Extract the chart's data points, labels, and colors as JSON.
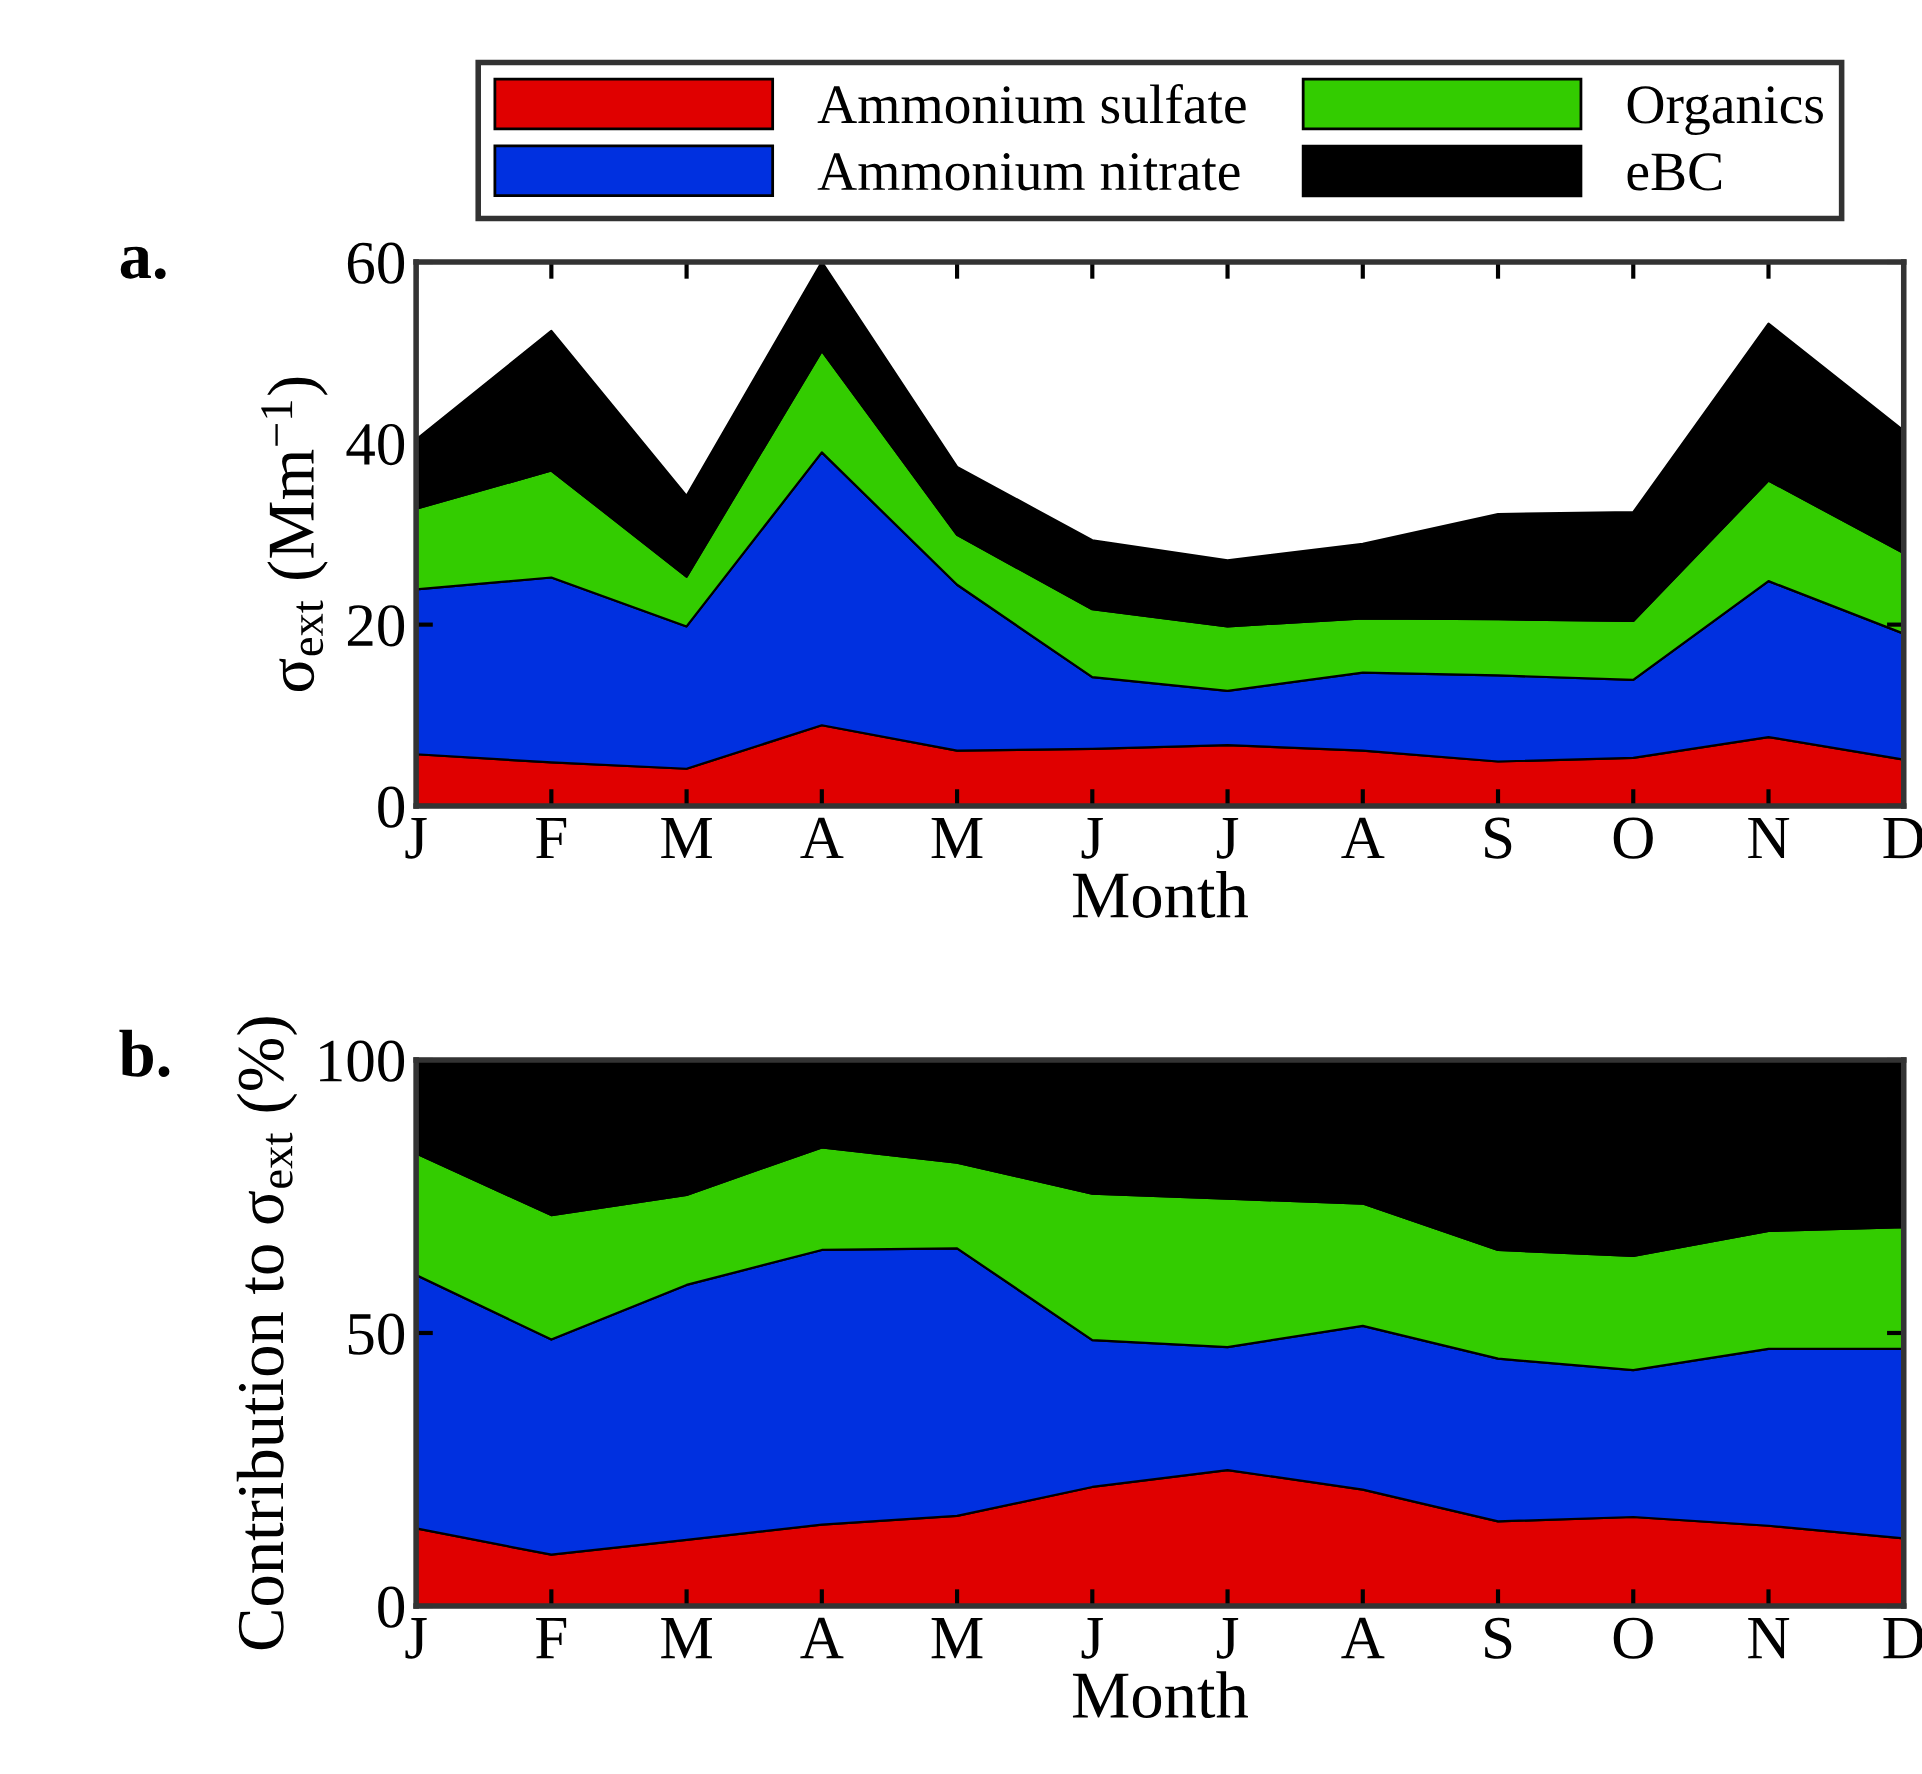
{
  "chart_data": [
    {
      "type": "area",
      "stacked": true,
      "title": "a.",
      "xlabel": "Month",
      "ylabel": "σ$_{ext}$ (Mm$^{−1}$)",
      "categories": [
        "J",
        "F",
        "M",
        "A",
        "M",
        "J",
        "J",
        "A",
        "S",
        "O",
        "N",
        "D"
      ],
      "ylim": [
        0,
        60
      ],
      "yticks": [
        0,
        20,
        40,
        60
      ],
      "grid": false,
      "legend": "top",
      "series": [
        {
          "name": "Ammonium sulfate",
          "color": "#e00000",
          "values": [
            5.7,
            4.8,
            4.1,
            8.9,
            6.1,
            6.3,
            6.7,
            6.1,
            4.9,
            5.3,
            7.6,
            5.1
          ]
        },
        {
          "name": "Ammonium nitrate",
          "color": "#0030e0",
          "values": [
            18.2,
            20.4,
            15.7,
            30.1,
            18.3,
            7.9,
            6.0,
            8.6,
            9.5,
            8.6,
            17.2,
            13.9
          ]
        },
        {
          "name": "Organics",
          "color": "#33cc00",
          "values": [
            8.9,
            11.8,
            5.5,
            11.2,
            5.5,
            7.5,
            7.1,
            6.0,
            6.2,
            6.5,
            11.1,
            8.9
          ]
        },
        {
          "name": "eBC",
          "color": "#000000",
          "values": [
            7.6,
            15.4,
            8.9,
            9.8,
            7.5,
            7.6,
            7.3,
            8.2,
            11.6,
            12.0,
            17.3,
            13.5
          ]
        }
      ]
    },
    {
      "type": "area",
      "stacked": true,
      "title": "b.",
      "xlabel": "Month",
      "ylabel": "Contribution to σ$_{ext}$ (%)",
      "categories": [
        "J",
        "F",
        "M",
        "A",
        "M",
        "J",
        "J",
        "A",
        "S",
        "O",
        "N",
        "D"
      ],
      "ylim": [
        0,
        100
      ],
      "yticks": [
        0,
        50,
        100
      ],
      "grid": false,
      "series": [
        {
          "color": "#e00000",
          "values": [
            14.2,
            9.4,
            12.1,
            14.9,
            16.5,
            21.8,
            24.9,
            21.3,
            15.5,
            16.3,
            14.7,
            12.4
          ]
        },
        {
          "color": "#0030e0",
          "values": [
            46.4,
            39.4,
            46.7,
            50.3,
            49.0,
            26.9,
            22.5,
            30.0,
            29.8,
            26.9,
            32.4,
            34.7
          ]
        },
        {
          "color": "#33cc00",
          "values": [
            22.3,
            22.8,
            16.5,
            18.8,
            15.7,
            26.8,
            27.2,
            22.4,
            19.9,
            20.9,
            21.6,
            22.3
          ]
        },
        {
          "color": "#000000",
          "values": [
            17.1,
            28.4,
            24.7,
            16.0,
            18.8,
            24.5,
            25.4,
            26.3,
            34.8,
            35.9,
            31.3,
            30.6
          ]
        }
      ]
    }
  ]
}
